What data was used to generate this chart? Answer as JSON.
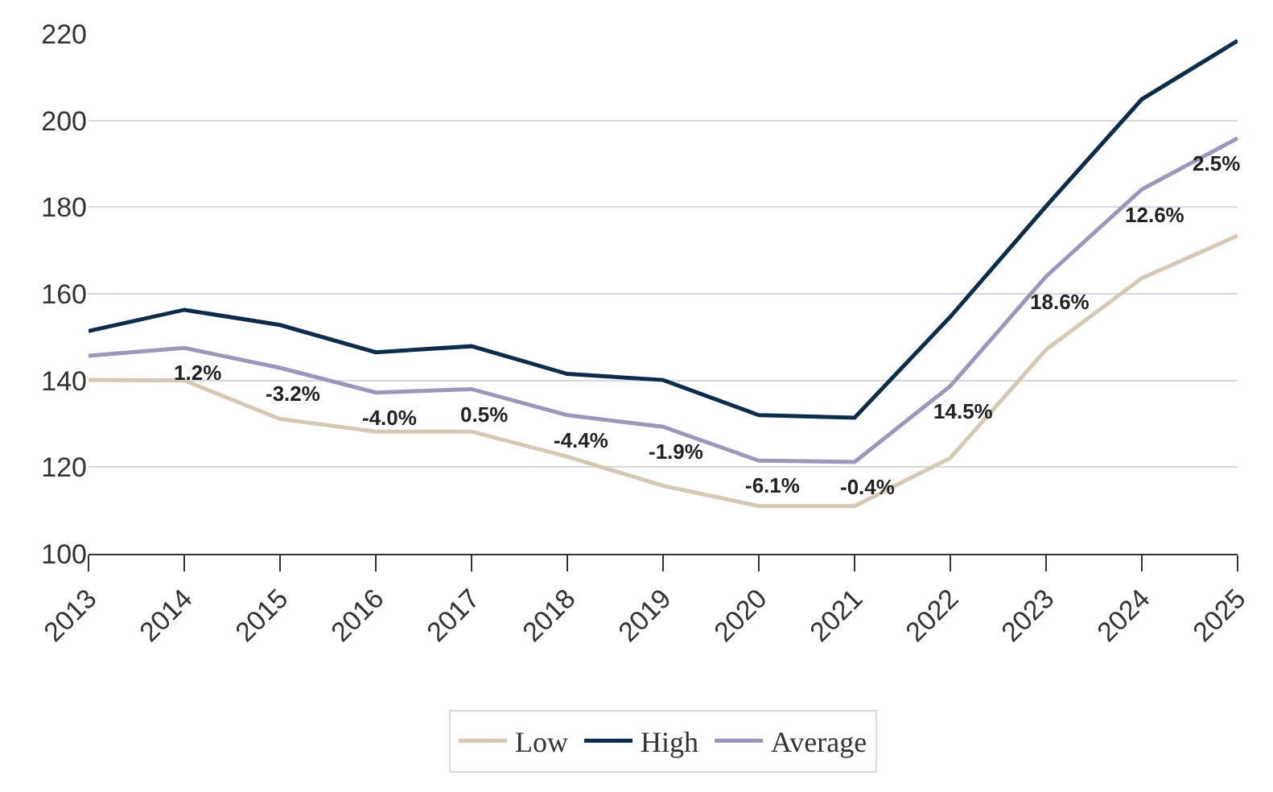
{
  "chart_data": {
    "type": "line",
    "x": [
      2013,
      2014,
      2015,
      2016,
      2017,
      2018,
      2019,
      2020,
      2021,
      2022,
      2023,
      2024,
      2025
    ],
    "xlim": [
      2013,
      2025
    ],
    "xticks": [
      2013,
      2014,
      2015,
      2016,
      2017,
      2018,
      2019,
      2020,
      2021,
      2022,
      2023,
      2024,
      2025
    ],
    "ylim": [
      100,
      220
    ],
    "yticks": [
      100,
      120,
      140,
      160,
      180,
      200,
      220
    ],
    "grid": "y",
    "legend": "bottom",
    "marker": "none",
    "line_style": "solid",
    "series": [
      {
        "name": "Low",
        "color": "#d3c9b4",
        "values": [
          140.1,
          140.0,
          131.1,
          128.2,
          128.2,
          122.4,
          115.7,
          111.0,
          111.0,
          122.1,
          147.1,
          163.6,
          173.4
        ]
      },
      {
        "name": "High",
        "color": "#0d2c4a",
        "values": [
          151.4,
          156.3,
          152.8,
          146.5,
          147.9,
          141.5,
          140.1,
          132.0,
          131.4,
          154.7,
          180.2,
          204.9,
          218.4
        ]
      },
      {
        "name": "Average",
        "color": "#9b97bb",
        "values": [
          145.7,
          147.5,
          142.9,
          137.2,
          138.0,
          132.0,
          129.3,
          121.5,
          121.2,
          138.7,
          164.0,
          184.1,
          195.9
        ]
      }
    ],
    "annotations": [
      {
        "text": "1.2%",
        "x": 2014,
        "y": 147.5
      },
      {
        "text": "-3.2%",
        "x": 2015,
        "y": 142.9
      },
      {
        "text": "-4.0%",
        "x": 2016,
        "y": 137.2
      },
      {
        "text": "0.5%",
        "x": 2017,
        "y": 138.0
      },
      {
        "text": "-4.4%",
        "x": 2018,
        "y": 132.0
      },
      {
        "text": "-1.9%",
        "x": 2019,
        "y": 129.3
      },
      {
        "text": "-6.1%",
        "x": 2020,
        "y": 121.5
      },
      {
        "text": "-0.4%",
        "x": 2021,
        "y": 121.2
      },
      {
        "text": "14.5%",
        "x": 2022,
        "y": 138.7
      },
      {
        "text": "18.6%",
        "x": 2023,
        "y": 164.0
      },
      {
        "text": "12.6%",
        "x": 2024,
        "y": 184.1
      },
      {
        "text": "2.5%",
        "x": 2025,
        "y": 195.9
      }
    ]
  }
}
